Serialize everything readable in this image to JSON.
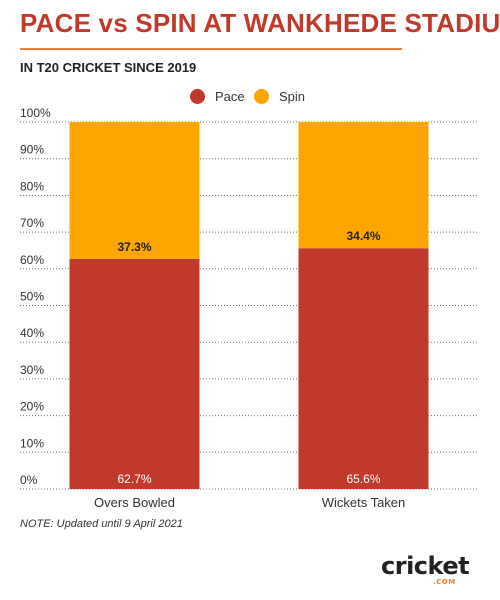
{
  "header": {
    "title": "PACE vs SPIN AT WANKHEDE STADIUM",
    "subtitle": "IN T20 CRICKET SINCE 2019"
  },
  "legend": {
    "items": [
      {
        "label": "Pace",
        "color": "#c0392b"
      },
      {
        "label": "Spin",
        "color": "#ffa500"
      }
    ]
  },
  "chart_data": {
    "type": "bar",
    "stacked": true,
    "categories": [
      "Overs Bowled",
      "Wickets Taken"
    ],
    "series": [
      {
        "name": "Pace",
        "values": [
          62.7,
          65.6
        ],
        "color": "#c0392b",
        "labels": [
          "62.7%",
          "65.6%"
        ]
      },
      {
        "name": "Spin",
        "values": [
          37.3,
          34.4
        ],
        "color": "#ffa500",
        "labels": [
          "37.3%",
          "34.4%"
        ]
      }
    ],
    "ylim": [
      0,
      100
    ],
    "yticks": [
      "0%",
      "10%",
      "20%",
      "30%",
      "40%",
      "50%",
      "60%",
      "70%",
      "80%",
      "90%",
      "100%"
    ],
    "grid": true,
    "legend_position": "top-center"
  },
  "footer": {
    "note": "NOTE: Updated until 9 April 2021",
    "logo_text": "cricket",
    "logo_suffix": ".COM"
  }
}
